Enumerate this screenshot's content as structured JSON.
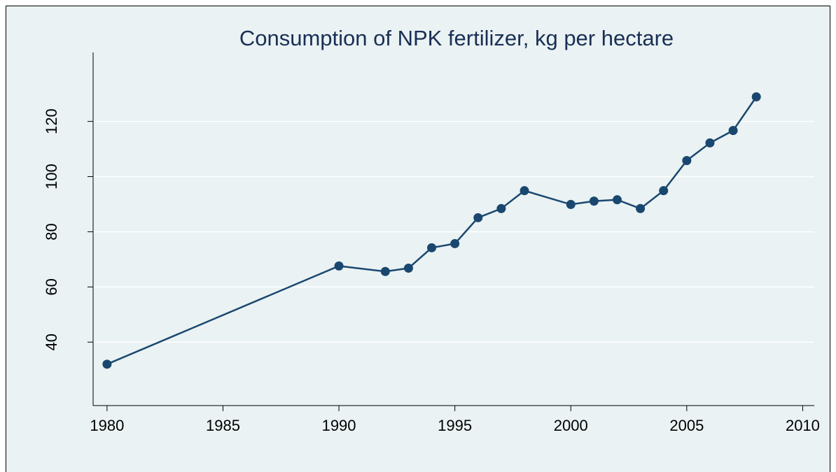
{
  "chart_data": {
    "type": "line",
    "title": "Consumption of NPK fertilizer, kg per hectare",
    "x": [
      1980,
      1990,
      1992,
      1993,
      1994,
      1995,
      1996,
      1997,
      1998,
      2000,
      2001,
      2002,
      2003,
      2004,
      2005,
      2006,
      2007,
      2008
    ],
    "series": [
      {
        "color": "#1a476f",
        "values": [
          32,
          67.6,
          65.6,
          66.8,
          74.2,
          75.7,
          85.1,
          88.4,
          94.9,
          89.9,
          91.1,
          91.6,
          88.4,
          94.9,
          105.8,
          112.2,
          116.7,
          128.9
        ]
      }
    ],
    "xlim": [
      1979.4,
      2010.5
    ],
    "xticks": [
      1980,
      1985,
      1990,
      1995,
      2000,
      2005,
      2010
    ],
    "ylim": [
      17,
      145
    ],
    "yticks": [
      40,
      60,
      80,
      100,
      120
    ],
    "grid": true
  }
}
